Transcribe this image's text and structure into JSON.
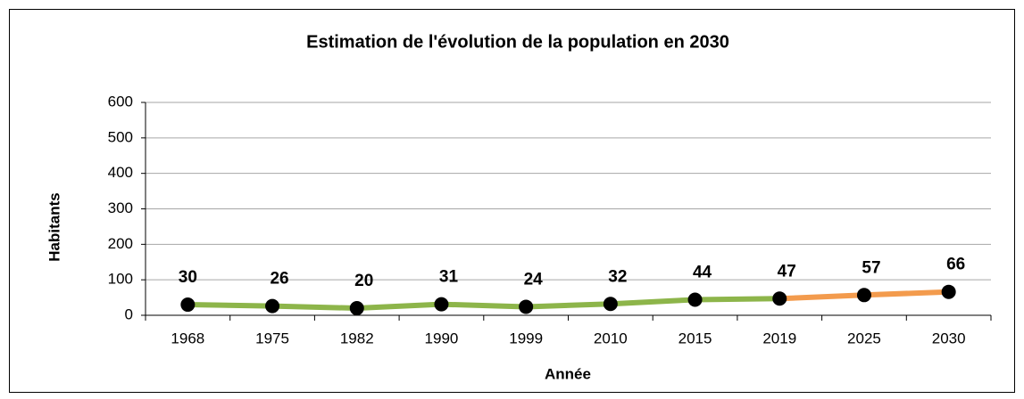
{
  "chart_data": {
    "type": "line",
    "title": "Estimation de l'évolution de la population en 2030",
    "x_label": "Année",
    "y_label": "Habitants",
    "categories": [
      "1968",
      "1975",
      "1982",
      "1990",
      "1999",
      "2010",
      "2015",
      "2019",
      "2025",
      "2030"
    ],
    "values": [
      30,
      26,
      20,
      31,
      24,
      32,
      44,
      47,
      57,
      66
    ],
    "segment_colors": [
      "#8db54a",
      "#8db54a",
      "#8db54a",
      "#8db54a",
      "#8db54a",
      "#8db54a",
      "#8db54a",
      "#f39b4d",
      "#f39b4d"
    ],
    "label_colors": [
      "#000000",
      "#000000",
      "#000000",
      "#000000",
      "#000000",
      "#000000",
      "#000000",
      "#000000",
      "#ff0000",
      "#ff0000"
    ],
    "marker_color": "#000000",
    "ylim": [
      0,
      600
    ],
    "yticks": [
      0,
      100,
      200,
      300,
      400,
      500,
      600
    ],
    "grid": true
  }
}
